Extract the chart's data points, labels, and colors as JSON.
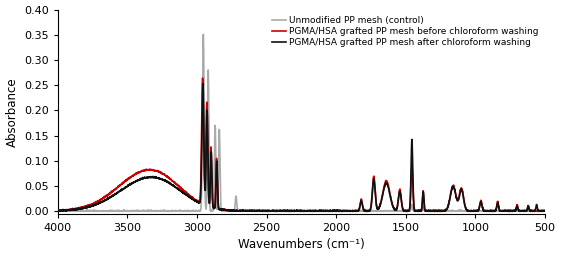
{
  "xlabel": "Wavenumbers (cm⁻¹)",
  "ylabel": "Absorbance",
  "xlim": [
    4000,
    500
  ],
  "ylim": [
    -0.005,
    0.4
  ],
  "yticks": [
    0.0,
    0.05,
    0.1,
    0.15,
    0.2,
    0.25,
    0.3,
    0.35,
    0.4
  ],
  "xticks": [
    4000,
    3500,
    3000,
    2500,
    2000,
    1500,
    1000,
    500
  ],
  "legend": [
    {
      "label": "Unmodified PP mesh (control)",
      "color": "#aaaaaa",
      "lw": 1.2
    },
    {
      "label": "PGMA/HSA grafted PP mesh before chloroform washing",
      "color": "#cc0000",
      "lw": 1.2
    },
    {
      "label": "PGMA/HSA grafted PP mesh after chloroform washing",
      "color": "#111111",
      "lw": 1.2
    }
  ],
  "figsize": [
    5.61,
    2.57
  ],
  "dpi": 100
}
